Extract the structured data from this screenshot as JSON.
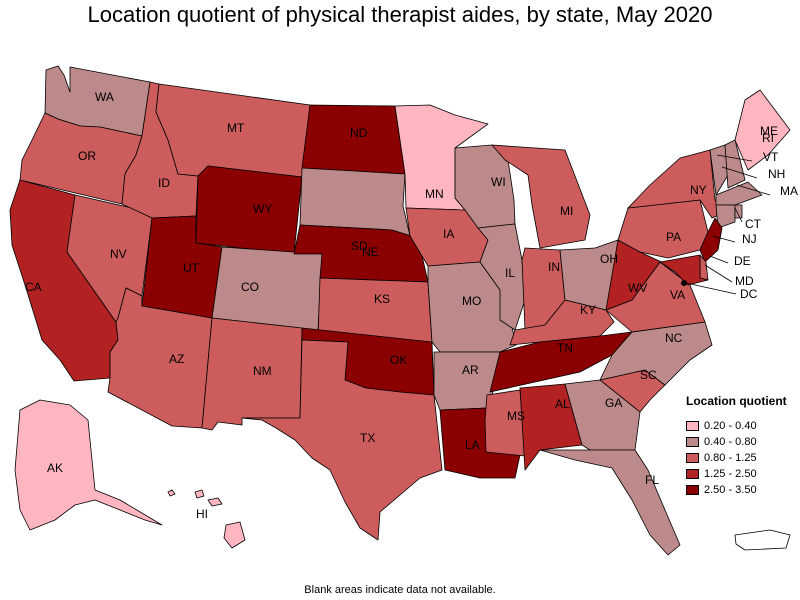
{
  "title": "Location quotient of physical therapist aides, by state, May 2020",
  "footnote": "Blank areas indicate data not available.",
  "legend": {
    "title": "Location quotient",
    "items": [
      {
        "range": "0.20 - 0.40",
        "color": "#ffb6c1"
      },
      {
        "range": "0.40 - 0.80",
        "color": "#bc8a8a"
      },
      {
        "range": "0.80 - 1.25",
        "color": "#cd5c5c"
      },
      {
        "range": "1.25 - 2.50",
        "color": "#b22222"
      },
      {
        "range": "2.50 - 3.50",
        "color": "#8b0000"
      }
    ]
  },
  "states": [
    {
      "abbr": "WA",
      "bin": 1
    },
    {
      "abbr": "OR",
      "bin": 2
    },
    {
      "abbr": "CA",
      "bin": 3
    },
    {
      "abbr": "NV",
      "bin": 2
    },
    {
      "abbr": "ID",
      "bin": 2
    },
    {
      "abbr": "MT",
      "bin": 2
    },
    {
      "abbr": "WY",
      "bin": 4
    },
    {
      "abbr": "UT",
      "bin": 4
    },
    {
      "abbr": "AZ",
      "bin": 2
    },
    {
      "abbr": "CO",
      "bin": 1
    },
    {
      "abbr": "NM",
      "bin": 2
    },
    {
      "abbr": "ND",
      "bin": 4
    },
    {
      "abbr": "SD",
      "bin": 1
    },
    {
      "abbr": "NE",
      "bin": 4
    },
    {
      "abbr": "KS",
      "bin": 2
    },
    {
      "abbr": "OK",
      "bin": 4
    },
    {
      "abbr": "TX",
      "bin": 2
    },
    {
      "abbr": "MN",
      "bin": 0
    },
    {
      "abbr": "IA",
      "bin": 2
    },
    {
      "abbr": "MO",
      "bin": 1
    },
    {
      "abbr": "AR",
      "bin": 1
    },
    {
      "abbr": "LA",
      "bin": 4
    },
    {
      "abbr": "WI",
      "bin": 1
    },
    {
      "abbr": "IL",
      "bin": 1
    },
    {
      "abbr": "MI",
      "bin": 2
    },
    {
      "abbr": "IN",
      "bin": 2
    },
    {
      "abbr": "OH",
      "bin": 1
    },
    {
      "abbr": "KY",
      "bin": 2
    },
    {
      "abbr": "TN",
      "bin": 4
    },
    {
      "abbr": "MS",
      "bin": 2
    },
    {
      "abbr": "AL",
      "bin": 3
    },
    {
      "abbr": "GA",
      "bin": 1
    },
    {
      "abbr": "FL",
      "bin": 1
    },
    {
      "abbr": "SC",
      "bin": 2
    },
    {
      "abbr": "NC",
      "bin": 1
    },
    {
      "abbr": "VA",
      "bin": 2
    },
    {
      "abbr": "WV",
      "bin": 3
    },
    {
      "abbr": "PA",
      "bin": 2
    },
    {
      "abbr": "NY",
      "bin": 2
    },
    {
      "abbr": "ME",
      "bin": 0
    },
    {
      "abbr": "VT",
      "bin": 1
    },
    {
      "abbr": "NH",
      "bin": 1
    },
    {
      "abbr": "MA",
      "bin": 1
    },
    {
      "abbr": "CT",
      "bin": 1
    },
    {
      "abbr": "RI",
      "bin": 1
    },
    {
      "abbr": "NJ",
      "bin": 4
    },
    {
      "abbr": "DE",
      "bin": 2
    },
    {
      "abbr": "MD",
      "bin": 3
    },
    {
      "abbr": "DC",
      "bin": 4
    },
    {
      "abbr": "AK",
      "bin": 0
    },
    {
      "abbr": "HI",
      "bin": 0
    },
    {
      "abbr": "PR",
      "bin": -1
    }
  ]
}
